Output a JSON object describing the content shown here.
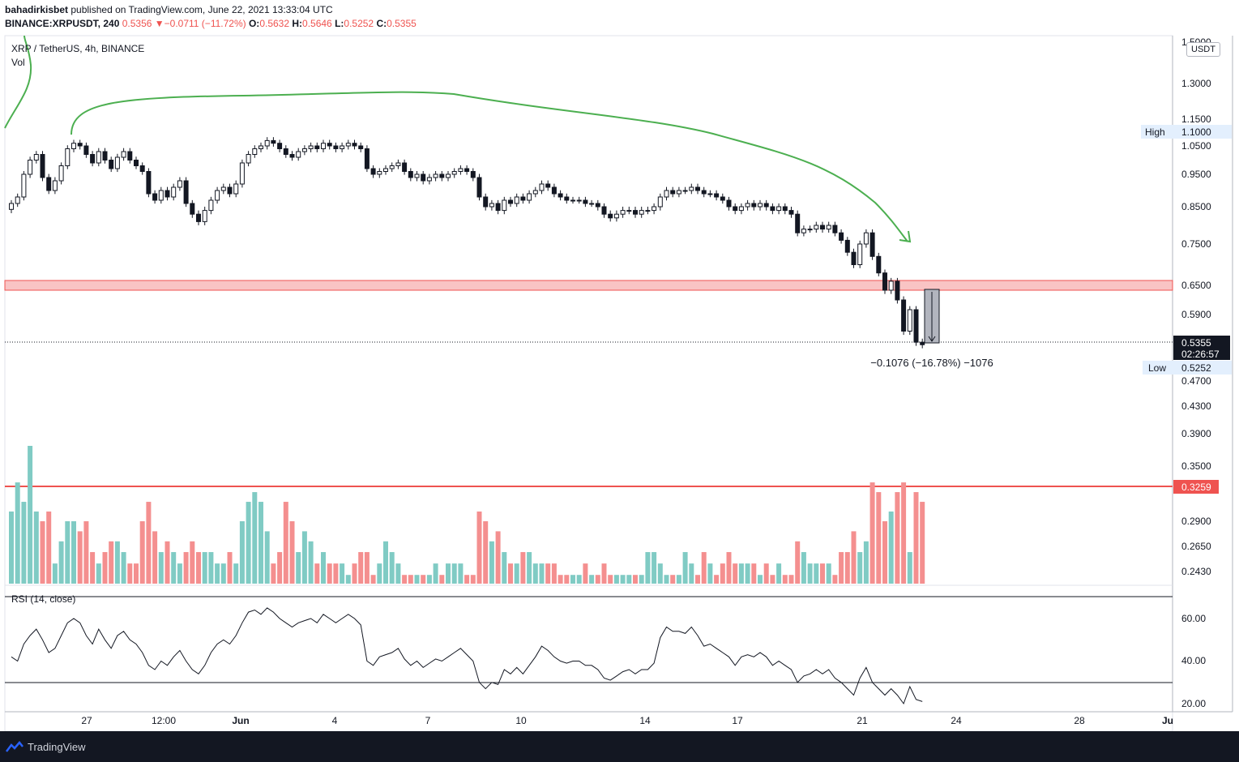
{
  "header": {
    "author": "bahadirkisbet",
    "published_text": " published on TradingView.com, June 22, 2021 13:33:04 UTC",
    "symbol": "BINANCE:XRPUSDT, 240",
    "last": "0.5356",
    "change_arrow": "▼",
    "change": "−0.0711 (−11.72%)",
    "o_label": "O:",
    "o_value": "0.5632",
    "h_label": "H:",
    "h_value": "0.5646",
    "l_label": "L:",
    "l_value": "0.5252",
    "c_label": "C:",
    "c_value": "0.5355"
  },
  "legend": {
    "title": "XRP / TetherUS, 4h, BINANCE",
    "vol": "Vol",
    "rsi": "RSI (14, close)"
  },
  "price_axis": {
    "unit": "USDT",
    "ticks": [
      "1.5000",
      "1.3000",
      "1.1500",
      "1.0500",
      "0.9500",
      "0.8500",
      "0.7500",
      "0.6500",
      "0.5900",
      "0.4700",
      "0.4300",
      "0.3900",
      "0.3500",
      "0.2900",
      "0.2650",
      "0.2430"
    ],
    "high_label": "High",
    "high_value": "1.1000",
    "low_label": "Low",
    "low_value": "0.5252",
    "current_price": "0.5355",
    "countdown": "02:26:57",
    "vol_level": "0.3259"
  },
  "rsi_axis": {
    "ticks": [
      "60.00",
      "40.00",
      "20.00"
    ]
  },
  "time_axis": {
    "ticks": [
      "27",
      "12:00",
      "Jun",
      "4",
      "7",
      "10",
      "14",
      "17",
      "21",
      "24",
      "28",
      "Ju"
    ]
  },
  "measure": {
    "label": "−0.1076 (−16.78%) −1076"
  },
  "colors": {
    "up": "#26a69a",
    "down": "#ef5350",
    "vol_up": "#80cbc4",
    "vol_down": "#f48f8f",
    "zone": "#f9c4c4",
    "zone_border": "#ef5350",
    "arrow": "#4caf50",
    "axis_text": "#131722"
  },
  "footer": {
    "brand": "TradingView"
  },
  "chart_data": {
    "type": "candlestick",
    "close": [
      0.86,
      0.88,
      0.95,
      1.0,
      1.02,
      0.94,
      0.9,
      0.93,
      0.98,
      1.04,
      1.06,
      1.05,
      1.02,
      0.99,
      1.03,
      1.0,
      0.97,
      1.01,
      1.03,
      1.0,
      0.98,
      0.96,
      0.89,
      0.87,
      0.9,
      0.88,
      0.91,
      0.93,
      0.86,
      0.83,
      0.81,
      0.84,
      0.87,
      0.9,
      0.91,
      0.89,
      0.92,
      0.99,
      1.02,
      1.04,
      1.05,
      1.07,
      1.06,
      1.04,
      1.02,
      1.01,
      1.03,
      1.04,
      1.05,
      1.04,
      1.06,
      1.05,
      1.04,
      1.05,
      1.06,
      1.05,
      1.04,
      0.97,
      0.95,
      0.96,
      0.97,
      0.98,
      0.99,
      0.96,
      0.94,
      0.95,
      0.93,
      0.94,
      0.95,
      0.94,
      0.95,
      0.96,
      0.97,
      0.96,
      0.94,
      0.88,
      0.85,
      0.86,
      0.84,
      0.87,
      0.86,
      0.88,
      0.87,
      0.89,
      0.9,
      0.92,
      0.91,
      0.89,
      0.88,
      0.87,
      0.87,
      0.87,
      0.86,
      0.86,
      0.85,
      0.83,
      0.82,
      0.83,
      0.84,
      0.84,
      0.83,
      0.84,
      0.84,
      0.85,
      0.88,
      0.9,
      0.89,
      0.9,
      0.9,
      0.91,
      0.9,
      0.89,
      0.89,
      0.88,
      0.87,
      0.85,
      0.84,
      0.85,
      0.86,
      0.85,
      0.86,
      0.85,
      0.84,
      0.85,
      0.84,
      0.83,
      0.78,
      0.79,
      0.79,
      0.8,
      0.79,
      0.8,
      0.78,
      0.76,
      0.73,
      0.7,
      0.75,
      0.78,
      0.72,
      0.68,
      0.64,
      0.66,
      0.62,
      0.56,
      0.6,
      0.54,
      0.5355
    ],
    "volume": [
      0.3,
      0.33,
      0.31,
      0.37,
      0.3,
      0.29,
      0.3,
      0.25,
      0.27,
      0.29,
      0.29,
      0.28,
      0.29,
      0.26,
      0.25,
      0.26,
      0.27,
      0.27,
      0.26,
      0.25,
      0.25,
      0.29,
      0.31,
      0.28,
      0.26,
      0.27,
      0.26,
      0.25,
      0.26,
      0.27,
      0.26,
      0.26,
      0.26,
      0.25,
      0.25,
      0.26,
      0.25,
      0.29,
      0.31,
      0.32,
      0.31,
      0.28,
      0.25,
      0.26,
      0.31,
      0.29,
      0.26,
      0.28,
      0.27,
      0.25,
      0.26,
      0.25,
      0.25,
      0.25,
      0.24,
      0.25,
      0.26,
      0.26,
      0.24,
      0.25,
      0.27,
      0.26,
      0.25,
      0.24,
      0.24,
      0.24,
      0.24,
      0.24,
      0.25,
      0.24,
      0.25,
      0.25,
      0.25,
      0.24,
      0.24,
      0.3,
      0.29,
      0.27,
      0.28,
      0.26,
      0.25,
      0.25,
      0.26,
      0.26,
      0.25,
      0.25,
      0.25,
      0.25,
      0.24,
      0.24,
      0.24,
      0.24,
      0.25,
      0.24,
      0.24,
      0.25,
      0.24,
      0.24,
      0.24,
      0.24,
      0.24,
      0.24,
      0.26,
      0.26,
      0.25,
      0.24,
      0.24,
      0.24,
      0.26,
      0.25,
      0.24,
      0.26,
      0.25,
      0.24,
      0.25,
      0.26,
      0.25,
      0.25,
      0.25,
      0.25,
      0.24,
      0.25,
      0.24,
      0.25,
      0.24,
      0.24,
      0.27,
      0.26,
      0.25,
      0.25,
      0.25,
      0.25,
      0.24,
      0.26,
      0.26,
      0.28,
      0.26,
      0.27,
      0.33,
      0.32,
      0.29,
      0.3,
      0.32,
      0.33,
      0.26,
      0.32,
      0.31
    ],
    "rsi": [
      42,
      40,
      48,
      52,
      55,
      50,
      44,
      46,
      52,
      58,
      60,
      58,
      52,
      48,
      55,
      50,
      46,
      52,
      54,
      50,
      48,
      44,
      38,
      36,
      40,
      38,
      42,
      45,
      40,
      36,
      34,
      38,
      44,
      48,
      50,
      48,
      52,
      58,
      63,
      64,
      62,
      65,
      63,
      60,
      58,
      56,
      58,
      59,
      60,
      58,
      62,
      60,
      58,
      60,
      62,
      60,
      57,
      40,
      38,
      42,
      43,
      44,
      46,
      41,
      38,
      40,
      37,
      39,
      41,
      40,
      42,
      44,
      46,
      43,
      40,
      30,
      27,
      30,
      29,
      36,
      34,
      37,
      34,
      38,
      42,
      47,
      45,
      42,
      40,
      39,
      40,
      40,
      38,
      38,
      36,
      32,
      31,
      33,
      35,
      36,
      34,
      36,
      36,
      39,
      51,
      56,
      54,
      54,
      53,
      56,
      52,
      47,
      48,
      46,
      44,
      42,
      38,
      42,
      43,
      42,
      44,
      42,
      38,
      40,
      38,
      36,
      30,
      33,
      34,
      36,
      34,
      36,
      32,
      30,
      27,
      24,
      32,
      37,
      30,
      27,
      24,
      27,
      24,
      20,
      28,
      22,
      21
    ]
  }
}
